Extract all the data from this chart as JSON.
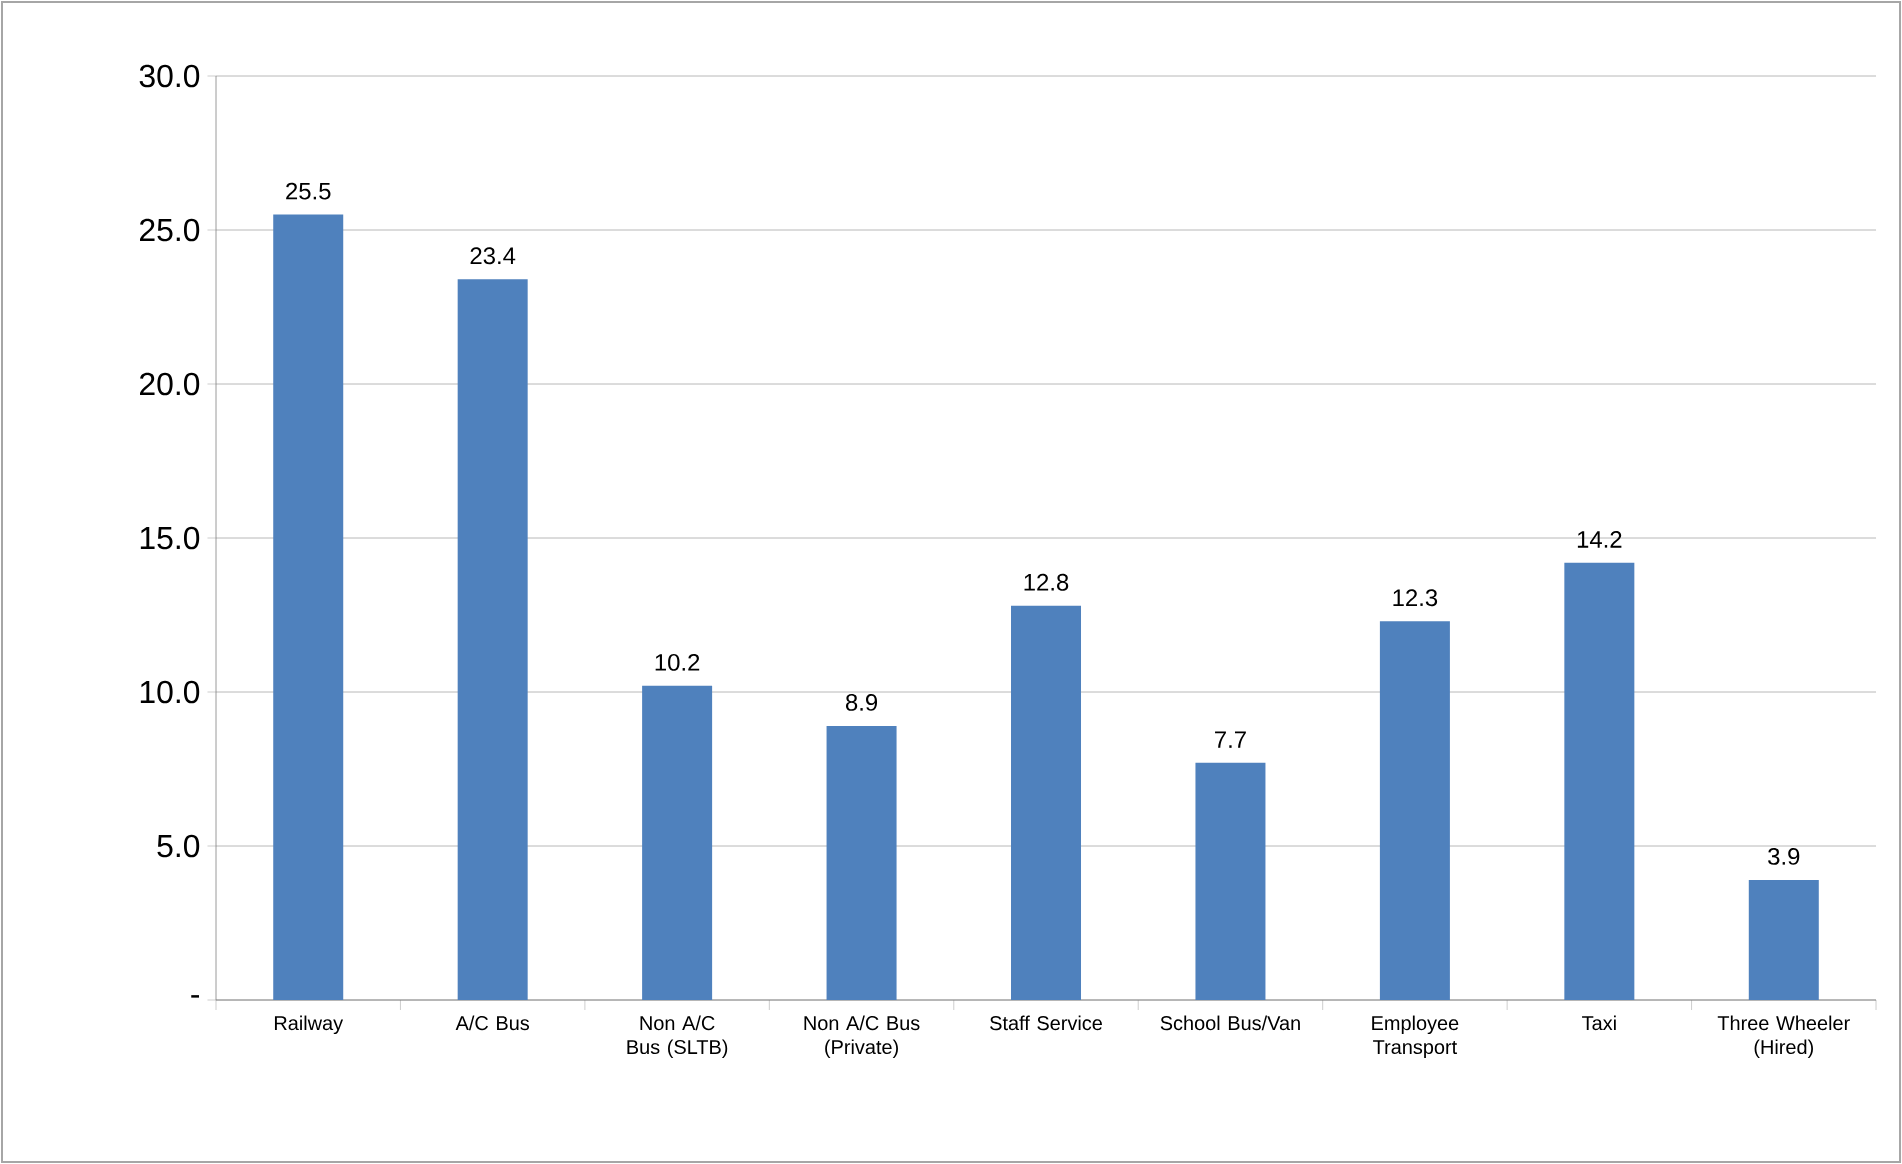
{
  "chart_data": {
    "type": "bar",
    "categories": [
      "Railway",
      "A/C Bus",
      "Non A/C Bus (SLTB)",
      "Non A/C Bus (Private)",
      "Staff Service",
      "School Bus/Van",
      "Employee Transport",
      "Taxi",
      "Three Wheeler (Hired)"
    ],
    "values": [
      25.5,
      23.4,
      10.2,
      8.9,
      12.8,
      7.7,
      12.3,
      14.2,
      3.9
    ],
    "color": "#4f81bd",
    "ylim": [
      0,
      30
    ],
    "yticks": [
      {
        "value": 0,
        "label": "-"
      },
      {
        "value": 5,
        "label": "5.0"
      },
      {
        "value": 10,
        "label": "10.0"
      },
      {
        "value": 15,
        "label": "15.0"
      },
      {
        "value": 20,
        "label": "20.0"
      },
      {
        "value": 25,
        "label": "25.0"
      },
      {
        "value": 30,
        "label": "30.0"
      }
    ],
    "grid": "y",
    "data_labels": true
  }
}
